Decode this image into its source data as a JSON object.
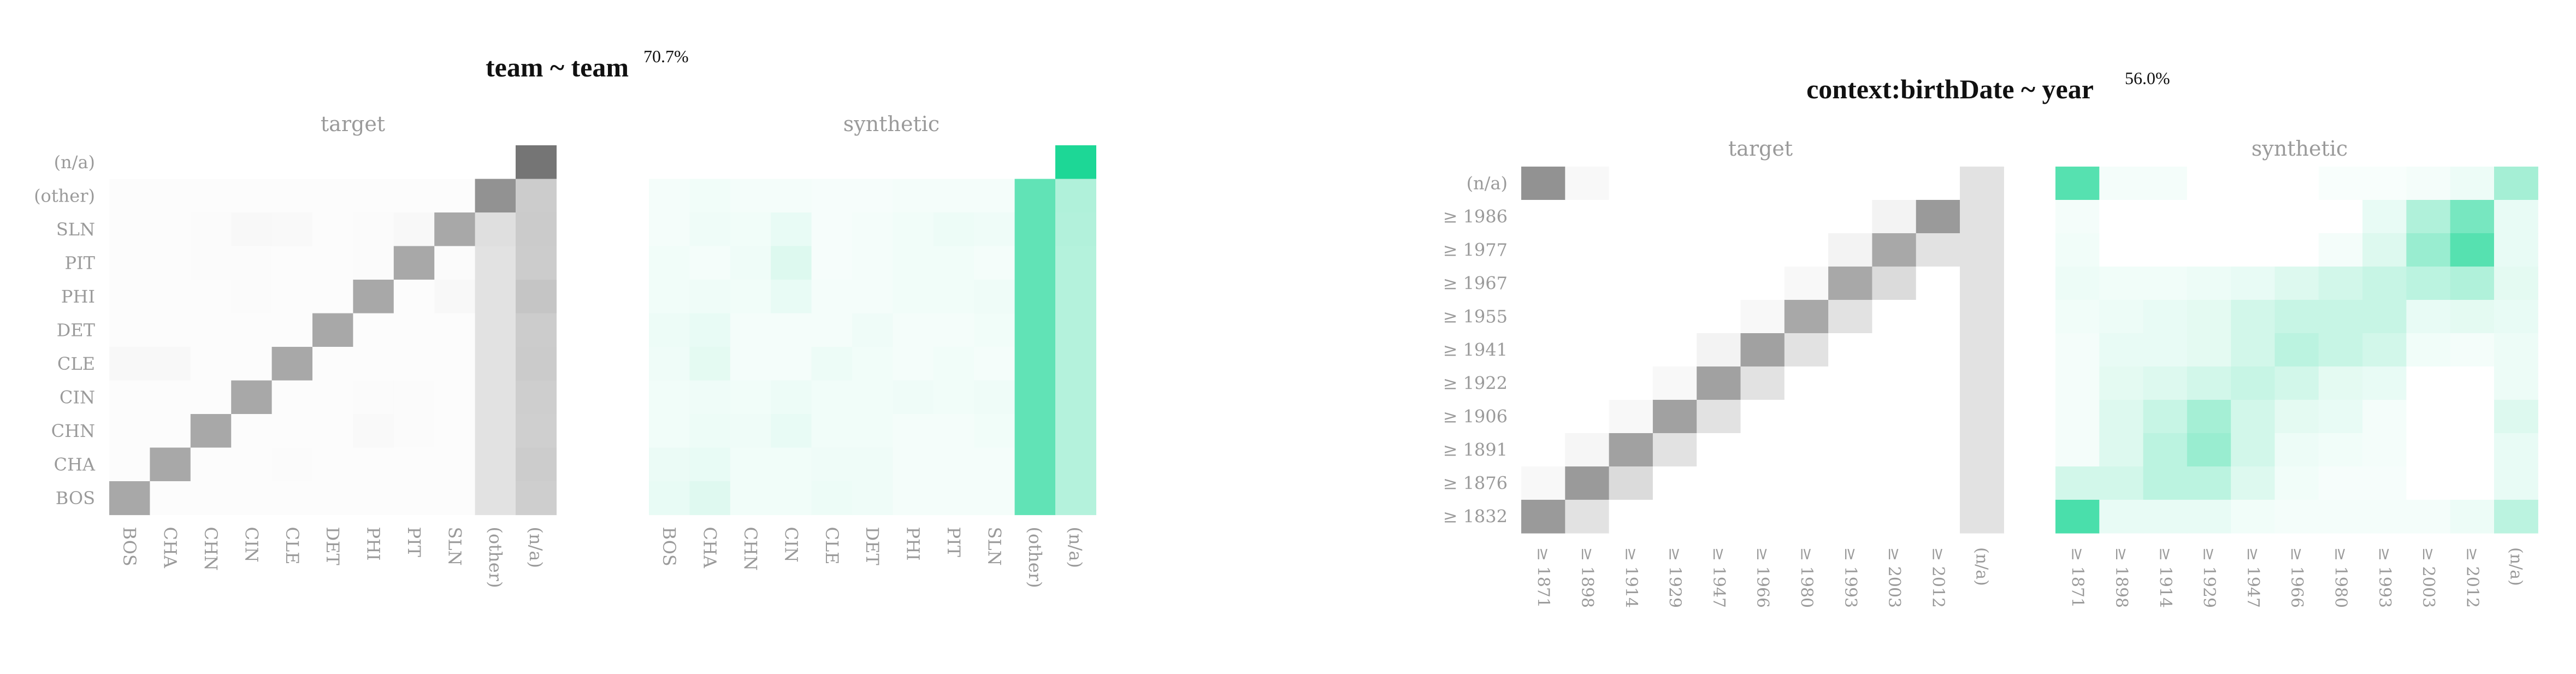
{
  "chart_data": [
    {
      "type": "heatmap",
      "title": "team ~ team",
      "percent": "70.7%",
      "panels": [
        "target",
        "synthetic"
      ],
      "x_categories": [
        "BOS",
        "CHA",
        "CHN",
        "CIN",
        "CLE",
        "DET",
        "PHI",
        "PIT",
        "SLN",
        "(other)",
        "(n/a)"
      ],
      "y_categories": [
        "(n/a)",
        "(other)",
        "SLN",
        "PIT",
        "PHI",
        "DET",
        "CLE",
        "CIN",
        "CHN",
        "CHA",
        "BOS"
      ],
      "target_values": [
        [
          0,
          0,
          0,
          0,
          0,
          0,
          0,
          0,
          0,
          0,
          0.95
        ],
        [
          0.02,
          0.02,
          0.02,
          0.02,
          0.02,
          0.02,
          0.02,
          0.02,
          0.02,
          0.75,
          0.35
        ],
        [
          0.02,
          0.02,
          0.03,
          0.05,
          0.04,
          0.02,
          0.03,
          0.05,
          0.6,
          0.22,
          0.36
        ],
        [
          0.02,
          0.02,
          0.03,
          0.03,
          0.02,
          0.02,
          0.03,
          0.6,
          0.03,
          0.2,
          0.35
        ],
        [
          0.02,
          0.02,
          0.02,
          0.03,
          0.02,
          0.02,
          0.6,
          0.02,
          0.05,
          0.2,
          0.4
        ],
        [
          0.02,
          0.02,
          0.02,
          0.02,
          0.02,
          0.6,
          0.02,
          0.02,
          0.02,
          0.2,
          0.35
        ],
        [
          0.05,
          0.05,
          0.02,
          0.02,
          0.6,
          0.02,
          0.02,
          0.02,
          0.02,
          0.2,
          0.36
        ],
        [
          0.02,
          0.02,
          0.02,
          0.6,
          0.02,
          0.02,
          0.03,
          0.03,
          0.02,
          0.2,
          0.34
        ],
        [
          0.02,
          0.02,
          0.6,
          0.02,
          0.02,
          0.02,
          0.04,
          0.03,
          0.02,
          0.2,
          0.33
        ],
        [
          0.02,
          0.6,
          0.02,
          0.02,
          0.03,
          0.02,
          0.02,
          0.02,
          0.02,
          0.2,
          0.35
        ],
        [
          0.6,
          0.02,
          0.02,
          0.02,
          0.02,
          0.02,
          0.02,
          0.02,
          0.02,
          0.2,
          0.34
        ]
      ],
      "synthetic_values": [
        [
          0,
          0,
          0,
          0,
          0,
          0,
          0,
          0,
          0,
          0,
          1.0
        ],
        [
          0.05,
          0.06,
          0.05,
          0.05,
          0.04,
          0.04,
          0.05,
          0.05,
          0.05,
          0.7,
          0.35
        ],
        [
          0.05,
          0.07,
          0.06,
          0.1,
          0.04,
          0.05,
          0.06,
          0.08,
          0.07,
          0.7,
          0.34
        ],
        [
          0.06,
          0.05,
          0.07,
          0.15,
          0.04,
          0.05,
          0.06,
          0.06,
          0.05,
          0.7,
          0.33
        ],
        [
          0.06,
          0.07,
          0.06,
          0.1,
          0.05,
          0.05,
          0.06,
          0.06,
          0.07,
          0.7,
          0.33
        ],
        [
          0.08,
          0.1,
          0.05,
          0.05,
          0.05,
          0.07,
          0.05,
          0.05,
          0.06,
          0.7,
          0.33
        ],
        [
          0.07,
          0.12,
          0.05,
          0.05,
          0.08,
          0.06,
          0.05,
          0.06,
          0.05,
          0.7,
          0.33
        ],
        [
          0.06,
          0.07,
          0.06,
          0.08,
          0.06,
          0.06,
          0.07,
          0.06,
          0.07,
          0.7,
          0.33
        ],
        [
          0.06,
          0.08,
          0.07,
          0.1,
          0.06,
          0.06,
          0.05,
          0.05,
          0.06,
          0.7,
          0.33
        ],
        [
          0.09,
          0.1,
          0.06,
          0.06,
          0.07,
          0.07,
          0.05,
          0.05,
          0.05,
          0.7,
          0.33
        ],
        [
          0.1,
          0.14,
          0.06,
          0.06,
          0.08,
          0.07,
          0.05,
          0.05,
          0.05,
          0.7,
          0.33
        ]
      ]
    },
    {
      "type": "heatmap",
      "title": "context:birthDate ~ year",
      "percent": "56.0%",
      "panels": [
        "target",
        "synthetic"
      ],
      "x_categories": [
        "≥ 1871",
        "≥ 1898",
        "≥ 1914",
        "≥ 1929",
        "≥ 1947",
        "≥ 1966",
        "≥ 1980",
        "≥ 1993",
        "≥ 2003",
        "≥ 2012",
        "(n/a)"
      ],
      "y_categories": [
        "(n/a)",
        "≥ 1986",
        "≥ 1977",
        "≥ 1967",
        "≥ 1955",
        "≥ 1941",
        "≥ 1922",
        "≥ 1906",
        "≥ 1891",
        "≥ 1876",
        "≥ 1832"
      ],
      "target_values": [
        [
          0.75,
          0.05,
          0,
          0,
          0,
          0,
          0,
          0,
          0,
          0,
          0.2
        ],
        [
          0,
          0,
          0,
          0,
          0,
          0,
          0,
          0,
          0.08,
          0.7,
          0.2
        ],
        [
          0,
          0,
          0,
          0,
          0,
          0,
          0,
          0.08,
          0.6,
          0.2,
          0.2
        ],
        [
          0,
          0,
          0,
          0,
          0,
          0,
          0.05,
          0.6,
          0.25,
          0,
          0.2
        ],
        [
          0,
          0,
          0,
          0,
          0,
          0.05,
          0.6,
          0.2,
          0,
          0,
          0.2
        ],
        [
          0,
          0,
          0,
          0,
          0.08,
          0.65,
          0.2,
          0,
          0,
          0,
          0.2
        ],
        [
          0,
          0,
          0,
          0.05,
          0.65,
          0.2,
          0,
          0,
          0,
          0,
          0.2
        ],
        [
          0,
          0,
          0.05,
          0.65,
          0.2,
          0,
          0,
          0,
          0,
          0,
          0.2
        ],
        [
          0,
          0.06,
          0.65,
          0.2,
          0,
          0,
          0,
          0,
          0,
          0,
          0.2
        ],
        [
          0.05,
          0.7,
          0.25,
          0,
          0,
          0,
          0,
          0,
          0,
          0,
          0.2
        ],
        [
          0.7,
          0.2,
          0,
          0,
          0,
          0,
          0,
          0,
          0,
          0,
          0.2
        ]
      ],
      "synthetic_values": [
        [
          0.75,
          0.05,
          0.05,
          0,
          0,
          0,
          0.03,
          0.03,
          0.05,
          0.08,
          0.4
        ],
        [
          0.05,
          0,
          0,
          0,
          0,
          0,
          0,
          0.1,
          0.35,
          0.6,
          0.1
        ],
        [
          0.06,
          0,
          0,
          0,
          0,
          0,
          0.05,
          0.15,
          0.45,
          0.75,
          0.1
        ],
        [
          0.08,
          0.06,
          0.06,
          0.08,
          0.1,
          0.15,
          0.2,
          0.25,
          0.3,
          0.35,
          0.12
        ],
        [
          0.06,
          0.08,
          0.1,
          0.12,
          0.2,
          0.25,
          0.25,
          0.25,
          0.1,
          0.12,
          0.1
        ],
        [
          0.05,
          0.1,
          0.1,
          0.12,
          0.2,
          0.3,
          0.25,
          0.2,
          0.06,
          0.05,
          0.08
        ],
        [
          0.05,
          0.12,
          0.15,
          0.2,
          0.25,
          0.2,
          0.12,
          0.1,
          0,
          0,
          0.08
        ],
        [
          0.05,
          0.15,
          0.25,
          0.4,
          0.2,
          0.12,
          0.1,
          0.05,
          0,
          0,
          0.15
        ],
        [
          0.05,
          0.15,
          0.3,
          0.45,
          0.2,
          0.08,
          0.06,
          0.05,
          0,
          0,
          0.1
        ],
        [
          0.2,
          0.2,
          0.3,
          0.3,
          0.15,
          0.06,
          0.04,
          0.04,
          0,
          0,
          0.1
        ],
        [
          0.8,
          0.1,
          0.1,
          0.1,
          0.06,
          0.05,
          0.05,
          0.05,
          0.05,
          0.08,
          0.3
        ]
      ]
    }
  ],
  "colors": {
    "target": "#6e6e6e",
    "synthetic": "#1dd796"
  }
}
